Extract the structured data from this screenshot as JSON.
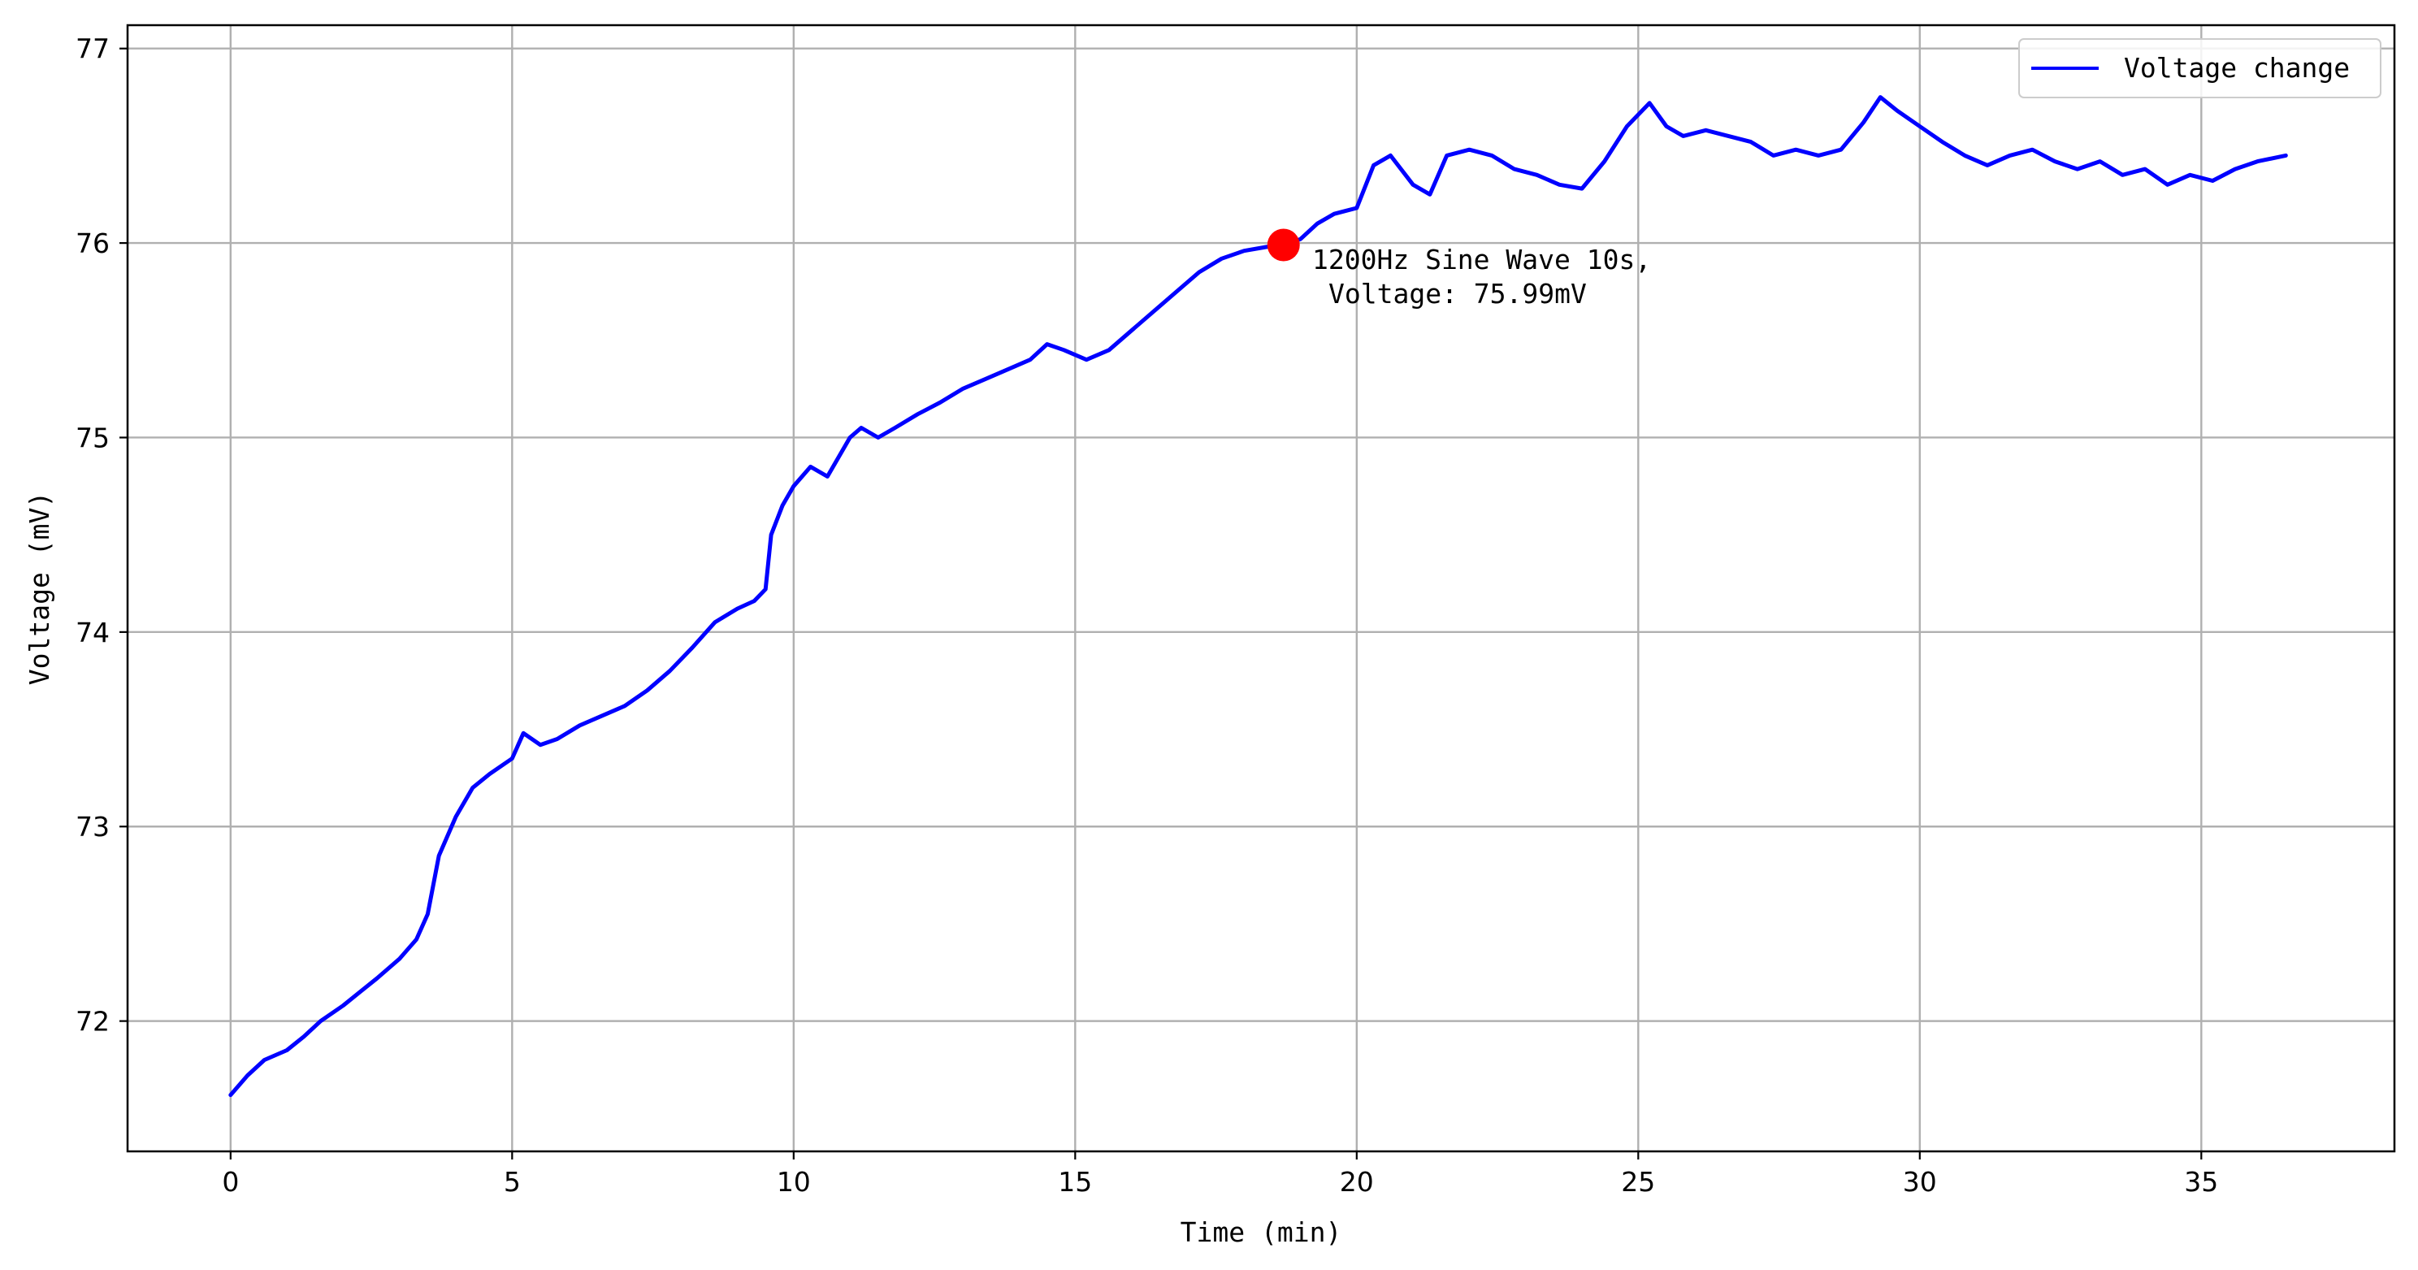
{
  "chart_data": {
    "type": "line",
    "title": "",
    "xlabel": "Time (min)",
    "ylabel": "Voltage (mV)",
    "xlim": [
      -1.83,
      38.43
    ],
    "ylim": [
      71.33,
      77.12
    ],
    "xticks": [
      0,
      5,
      10,
      15,
      20,
      25,
      30,
      35
    ],
    "yticks": [
      72,
      73,
      74,
      75,
      76,
      77
    ],
    "grid": true,
    "legend": {
      "location": "top-right",
      "entries": [
        "Voltage change"
      ]
    },
    "series": [
      {
        "name": "Voltage change",
        "color": "#0000ff",
        "x": [
          0.0,
          0.3,
          0.6,
          1.0,
          1.3,
          1.6,
          2.0,
          2.3,
          2.6,
          3.0,
          3.3,
          3.5,
          3.7,
          4.0,
          4.3,
          4.6,
          5.0,
          5.2,
          5.5,
          5.8,
          6.2,
          6.6,
          7.0,
          7.4,
          7.8,
          8.2,
          8.6,
          9.0,
          9.3,
          9.5,
          9.6,
          9.8,
          10.0,
          10.3,
          10.6,
          11.0,
          11.2,
          11.5,
          11.8,
          12.2,
          12.6,
          13.0,
          13.4,
          13.8,
          14.2,
          14.5,
          14.8,
          15.2,
          15.6,
          16.0,
          16.4,
          16.8,
          17.2,
          17.6,
          18.0,
          18.4,
          18.7,
          19.0,
          19.3,
          19.6,
          20.0,
          20.3,
          20.6,
          21.0,
          21.3,
          21.6,
          22.0,
          22.4,
          22.8,
          23.2,
          23.6,
          24.0,
          24.4,
          24.8,
          25.2,
          25.5,
          25.8,
          26.2,
          26.6,
          27.0,
          27.4,
          27.8,
          28.2,
          28.6,
          29.0,
          29.3,
          29.6,
          30.0,
          30.4,
          30.8,
          31.2,
          31.6,
          32.0,
          32.4,
          32.8,
          33.2,
          33.6,
          34.0,
          34.4,
          34.8,
          35.2,
          35.6,
          36.0,
          36.5
        ],
        "y": [
          71.62,
          71.72,
          71.8,
          71.85,
          71.92,
          72.0,
          72.08,
          72.15,
          72.22,
          72.32,
          72.42,
          72.55,
          72.85,
          73.05,
          73.2,
          73.27,
          73.35,
          73.48,
          73.42,
          73.45,
          73.52,
          73.57,
          73.62,
          73.7,
          73.8,
          73.92,
          74.05,
          74.12,
          74.16,
          74.22,
          74.5,
          74.65,
          74.75,
          74.85,
          74.8,
          75.0,
          75.05,
          75.0,
          75.05,
          75.12,
          75.18,
          75.25,
          75.3,
          75.35,
          75.4,
          75.48,
          75.45,
          75.4,
          75.45,
          75.55,
          75.65,
          75.75,
          75.85,
          75.92,
          75.96,
          75.98,
          75.99,
          76.02,
          76.1,
          76.15,
          76.18,
          76.4,
          76.45,
          76.3,
          76.25,
          76.45,
          76.48,
          76.45,
          76.38,
          76.35,
          76.3,
          76.28,
          76.42,
          76.6,
          76.72,
          76.6,
          76.55,
          76.58,
          76.55,
          76.52,
          76.45,
          76.48,
          76.45,
          76.48,
          76.62,
          76.75,
          76.68,
          76.6,
          76.52,
          76.45,
          76.4,
          76.45,
          76.48,
          76.42,
          76.38,
          76.42,
          76.35,
          76.38,
          76.3,
          76.35,
          76.32,
          76.38,
          76.42,
          76.45
        ]
      }
    ],
    "annotation": {
      "x": 18.7,
      "y": 75.99,
      "marker_color": "#ff0000",
      "line1": "1200Hz Sine Wave 10s,",
      "line2": "Voltage: 75.99mV"
    }
  }
}
